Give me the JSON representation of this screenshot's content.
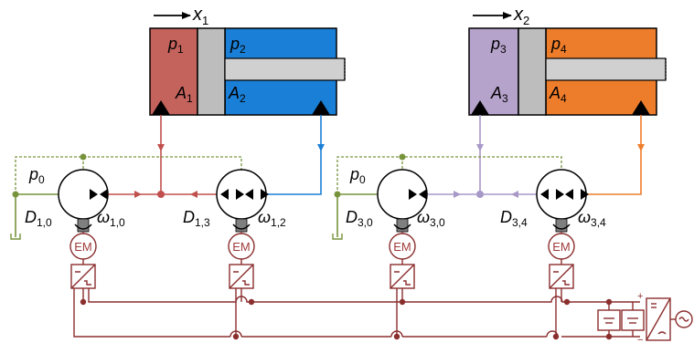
{
  "colors": {
    "chamber_p1": "#c4625c",
    "chamber_p2": "#1a7fd6",
    "chamber_p3": "#b6a3cc",
    "chamber_p4": "#ee7d2b",
    "piston": "#bdbdbd",
    "line_p1": "#c0504d",
    "line_p2": "#1a7fd6",
    "line_p3": "#a898c8",
    "line_p4": "#ee7d2b",
    "tank_line": "#77933c",
    "electrical": "#8b2e2e"
  },
  "cylinder1": {
    "position": {
      "var": "x",
      "sub": "1"
    },
    "chamber_left": {
      "p_var": "p",
      "p_sub": "1",
      "a_var": "A",
      "a_sub": "1"
    },
    "chamber_right": {
      "p_var": "p",
      "p_sub": "2",
      "a_var": "A",
      "a_sub": "2"
    }
  },
  "cylinder2": {
    "position": {
      "var": "x",
      "sub": "2"
    },
    "chamber_left": {
      "p_var": "p",
      "p_sub": "3",
      "a_var": "A",
      "a_sub": "3"
    },
    "chamber_right": {
      "p_var": "p",
      "p_sub": "4",
      "a_var": "A",
      "a_sub": "4"
    }
  },
  "group1": {
    "tank_pressure": {
      "var": "p",
      "sub": "0"
    },
    "pump_left": {
      "disp_var": "D",
      "disp_sub": "1,0",
      "speed_var": "ω",
      "speed_sub": "1,0"
    },
    "pump_right": {
      "disp_var": "D",
      "disp_sub": "1,3",
      "speed_var": "ω",
      "speed_sub": "1,2"
    }
  },
  "group2": {
    "tank_pressure": {
      "var": "p",
      "sub": "0"
    },
    "pump_left": {
      "disp_var": "D",
      "disp_sub": "3,0",
      "speed_var": "ω",
      "speed_sub": "3,0"
    },
    "pump_right": {
      "disp_var": "D",
      "disp_sub": "3,4",
      "speed_var": "ω",
      "speed_sub": "3,4"
    }
  },
  "motor_label": "EM",
  "supply": {
    "plus": "+",
    "minus": "−"
  }
}
